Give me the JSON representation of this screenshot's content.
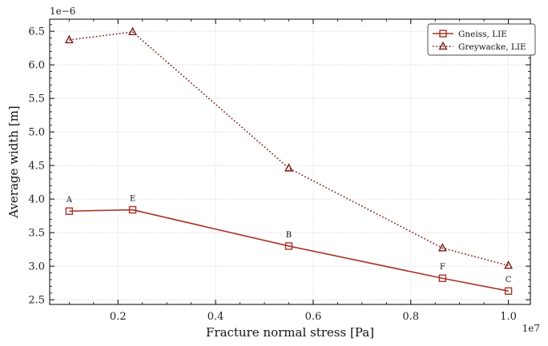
{
  "chart_data": {
    "type": "line",
    "xlabel": "Fracture normal stress [Pa]",
    "ylabel": "Average width [m]",
    "x_offset_label": "1e7",
    "y_offset_label": "1e−6",
    "xlim": [
      600000,
      10450000
    ],
    "ylim": [
      2.43e-06,
      6.68e-06
    ],
    "xticks": [
      2000000,
      4000000,
      6000000,
      8000000,
      10000000
    ],
    "xtick_labels": [
      "0.2",
      "0.4",
      "0.6",
      "0.8",
      "1.0"
    ],
    "yticks": [
      2.5e-06,
      3e-06,
      3.5e-06,
      4e-06,
      4.5e-06,
      5e-06,
      5.5e-06,
      6e-06,
      6.5e-06
    ],
    "ytick_labels": [
      "2.5",
      "3.0",
      "3.5",
      "4.0",
      "4.5",
      "5.0",
      "5.5",
      "6.0",
      "6.5"
    ],
    "grid": true,
    "legend_position": "top-right",
    "series": [
      {
        "name": "Gneiss, LIE",
        "color": "#a83225",
        "marker": "square",
        "line_style": "solid",
        "x": [
          1000000,
          2300000,
          5500000,
          8650000,
          10000000
        ],
        "y": [
          3.82e-06,
          3.84e-06,
          3.3e-06,
          2.82e-06,
          2.63e-06
        ],
        "point_labels": [
          "A",
          "E",
          "B",
          "F",
          "C"
        ]
      },
      {
        "name": "Greywacke, LIE",
        "color": "#7a1a14",
        "marker": "triangle",
        "line_style": "dotted",
        "x": [
          1000000,
          2300000,
          5500000,
          8650000,
          10000000
        ],
        "y": [
          6.37e-06,
          6.49e-06,
          4.46e-06,
          3.27e-06,
          3.01e-06
        ],
        "point_labels": []
      }
    ]
  }
}
